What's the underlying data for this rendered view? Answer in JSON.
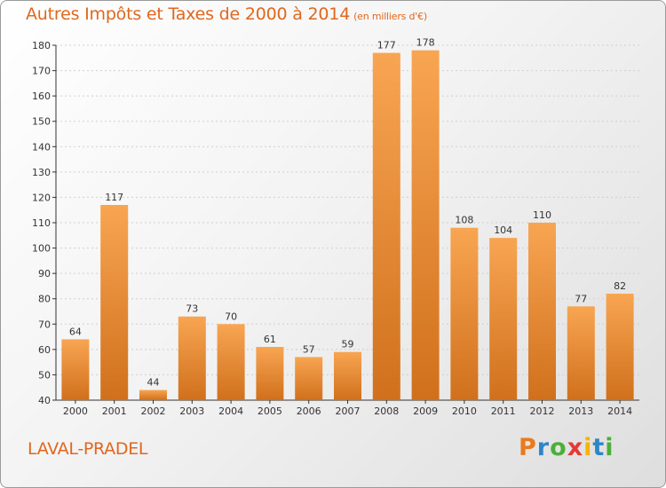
{
  "chart_data": {
    "type": "bar",
    "title": "Autres Impôts et Taxes de 2000 à 2014",
    "subtitle": "(en milliers d'€)",
    "categories": [
      "2000",
      "2001",
      "2002",
      "2003",
      "2004",
      "2005",
      "2006",
      "2007",
      "2008",
      "2009",
      "2010",
      "2011",
      "2012",
      "2013",
      "2014"
    ],
    "values": [
      64,
      117,
      44,
      73,
      70,
      61,
      57,
      59,
      177,
      178,
      108,
      104,
      110,
      77,
      82
    ],
    "ylim": [
      40,
      180
    ],
    "yticks": [
      40,
      50,
      60,
      70,
      80,
      90,
      100,
      110,
      120,
      130,
      140,
      150,
      160,
      170,
      180
    ],
    "grid": "horizontal-dashed",
    "bar_color_top": "#f8a552",
    "bar_color_bottom": "#d0701c"
  },
  "footer": {
    "commune": "LAVAL-PRADEL",
    "brand": "Proxiti",
    "brand_colors": [
      "#e87b1e",
      "#2e86c8",
      "#4caf3a",
      "#e53935",
      "#f5b400",
      "#2e86c8",
      "#4caf3a"
    ]
  },
  "colors": {
    "title": "#e0671e",
    "axis": "#333333",
    "grid": "#cfcfcf"
  }
}
